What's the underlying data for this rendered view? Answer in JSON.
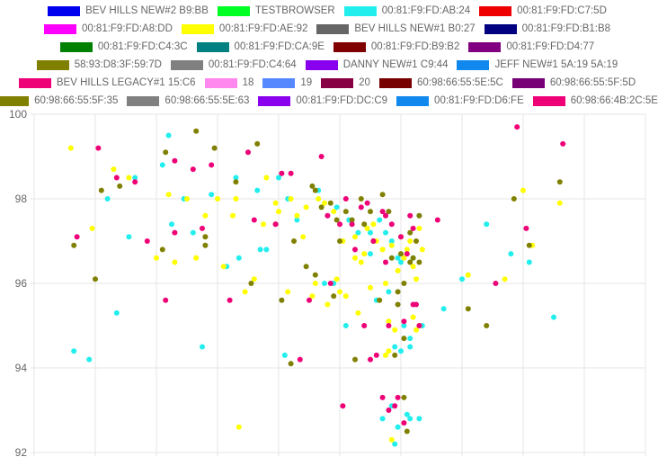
{
  "chart_data": {
    "type": "scatter",
    "title": "",
    "xlabel": "",
    "ylabel": "",
    "ylim": [
      92,
      100
    ],
    "yticks": [
      92,
      94,
      96,
      98,
      100
    ],
    "x_tick_labels_visible": false,
    "grid": true,
    "legend_position": "top",
    "legend_rows": [
      [
        0,
        1,
        2,
        3
      ],
      [
        4,
        5,
        6,
        7
      ],
      [
        8,
        9,
        10,
        11
      ],
      [
        12,
        13,
        14,
        15
      ],
      [
        16,
        17,
        18,
        19,
        20,
        21
      ],
      [
        22,
        23,
        24,
        25,
        26
      ]
    ],
    "series": [
      {
        "name": "BEV HILLS NEW#2 B9:BB",
        "color": "#0000ee",
        "points": []
      },
      {
        "name": "TESTBROWSER",
        "color": "#00ff22",
        "points": []
      },
      {
        "name": "00:81:F9:FD:AB:24",
        "color": "#22eeee",
        "points": [
          [
            6.5,
            94.4
          ],
          [
            9.0,
            94.2
          ],
          [
            12.0,
            98.0
          ],
          [
            15.5,
            97.1
          ],
          [
            16.5,
            98.5
          ],
          [
            13.5,
            95.3
          ],
          [
            21.0,
            98.8
          ],
          [
            22.5,
            97.4
          ],
          [
            22.0,
            99.5
          ],
          [
            24.5,
            98.0
          ],
          [
            26.0,
            97.2
          ],
          [
            29.0,
            98.1
          ],
          [
            27.5,
            94.5
          ],
          [
            33.0,
            98.5
          ],
          [
            31.5,
            96.4
          ],
          [
            33.5,
            96.6
          ],
          [
            36.5,
            98.2
          ],
          [
            37.0,
            96.8
          ],
          [
            38.0,
            96.8
          ],
          [
            40.0,
            98.5
          ],
          [
            41.5,
            98.0
          ],
          [
            43.0,
            97.5
          ],
          [
            41.0,
            94.3
          ],
          [
            46.5,
            98.2
          ],
          [
            47.5,
            96.0
          ],
          [
            49.0,
            96.0
          ],
          [
            51.5,
            97.5
          ],
          [
            51.0,
            95.0
          ],
          [
            53.0,
            97.2
          ],
          [
            55.0,
            97.2
          ],
          [
            56.0,
            95.6
          ],
          [
            58.0,
            95.8
          ],
          [
            59.0,
            94.5
          ],
          [
            59.5,
            96.6
          ],
          [
            60.5,
            95.0
          ],
          [
            61.5,
            94.7
          ],
          [
            62.0,
            96.6
          ],
          [
            63.0,
            97.6
          ],
          [
            63.5,
            95.0
          ],
          [
            60.0,
            94.4
          ],
          [
            61.5,
            94.5
          ],
          [
            57.0,
            92.8
          ],
          [
            58.5,
            93.1
          ],
          [
            59.5,
            92.6
          ],
          [
            61.0,
            92.9
          ],
          [
            61.5,
            92.8
          ],
          [
            59.0,
            92.2
          ],
          [
            63.0,
            92.8
          ],
          [
            57.5,
            97.2
          ],
          [
            55.0,
            96.7
          ],
          [
            67.0,
            95.4
          ],
          [
            70.0,
            96.1
          ],
          [
            74.0,
            97.4
          ],
          [
            78.0,
            96.7
          ],
          [
            81.0,
            96.5
          ],
          [
            85.0,
            95.2
          ],
          [
            60.0,
            96.5
          ],
          [
            58.5,
            97.0
          ],
          [
            56.5,
            97.5
          ],
          [
            49.5,
            97.8
          ]
        ]
      },
      {
        "name": "00:81:F9:FD:C7:5D",
        "color": "#ee0000",
        "points": []
      },
      {
        "name": "00:81:F9:FD:A8:DD",
        "color": "#ff00ff",
        "points": []
      },
      {
        "name": "00:81:F9:FD:AE:92",
        "color": "#ffff00",
        "points": [
          [
            6.0,
            99.2
          ],
          [
            9.5,
            97.3
          ],
          [
            13.0,
            98.7
          ],
          [
            15.5,
            98.5
          ],
          [
            20.0,
            96.6
          ],
          [
            22.0,
            98.1
          ],
          [
            23.0,
            96.5
          ],
          [
            25.0,
            98.0
          ],
          [
            26.5,
            96.6
          ],
          [
            28.0,
            97.6
          ],
          [
            30.0,
            98.0
          ],
          [
            31.0,
            96.4
          ],
          [
            32.5,
            97.6
          ],
          [
            33.0,
            98.0
          ],
          [
            34.5,
            95.8
          ],
          [
            36.0,
            96.1
          ],
          [
            37.5,
            97.4
          ],
          [
            38.0,
            98.5
          ],
          [
            39.5,
            97.9
          ],
          [
            40.0,
            97.7
          ],
          [
            41.5,
            95.8
          ],
          [
            42.0,
            98.0
          ],
          [
            43.0,
            97.6
          ],
          [
            44.0,
            97.1
          ],
          [
            45.5,
            95.7
          ],
          [
            46.0,
            96.0
          ],
          [
            47.5,
            97.9
          ],
          [
            48.0,
            95.5
          ],
          [
            49.0,
            97.7
          ],
          [
            49.5,
            96.1
          ],
          [
            50.0,
            95.8
          ],
          [
            50.5,
            97.0
          ],
          [
            51.0,
            95.7
          ],
          [
            52.5,
            97.1
          ],
          [
            53.0,
            95.3
          ],
          [
            53.5,
            96.5
          ],
          [
            54.0,
            96.7
          ],
          [
            54.5,
            97.3
          ],
          [
            55.0,
            95.9
          ],
          [
            56.0,
            97.0
          ],
          [
            57.0,
            96.8
          ],
          [
            57.5,
            96.0
          ],
          [
            58.0,
            95.1
          ],
          [
            58.5,
            96.9
          ],
          [
            59.0,
            94.9
          ],
          [
            59.5,
            96.3
          ],
          [
            60.0,
            97.1
          ],
          [
            60.5,
            96.6
          ],
          [
            61.0,
            96.8
          ],
          [
            61.5,
            97.0
          ],
          [
            62.0,
            96.4
          ],
          [
            62.5,
            96.1
          ],
          [
            63.0,
            97.3
          ],
          [
            63.5,
            96.8
          ],
          [
            62.0,
            95.2
          ],
          [
            62.5,
            94.9
          ],
          [
            63.0,
            95.0
          ],
          [
            58.0,
            94.4
          ],
          [
            57.5,
            94.3
          ],
          [
            58.5,
            92.3
          ],
          [
            71.0,
            96.2
          ],
          [
            77.0,
            96.1
          ],
          [
            80.0,
            98.2
          ],
          [
            81.5,
            96.9
          ],
          [
            86.0,
            97.9
          ],
          [
            55.5,
            97.4
          ],
          [
            33.5,
            92.6
          ],
          [
            46.5,
            98.0
          ],
          [
            44.5,
            97.8
          ],
          [
            52.5,
            96.6
          ]
        ]
      },
      {
        "name": "BEV HILLS NEW#1 B0:27",
        "color": "#666666",
        "points": []
      },
      {
        "name": "00:81:F9:FD:B1:B8",
        "color": "#000080",
        "points": []
      },
      {
        "name": "00:81:F9:FD:C4:3C",
        "color": "#008000",
        "points": []
      },
      {
        "name": "00:81:F9:FD:CA:9E",
        "color": "#008080",
        "points": []
      },
      {
        "name": "00:81:F9:FD:B9:B2",
        "color": "#800000",
        "points": []
      },
      {
        "name": "00:81:F9:FD:D4:77",
        "color": "#800080",
        "points": []
      },
      {
        "name": "58:93:D8:3F:59:7D",
        "color": "#808000",
        "points": [
          [
            6.5,
            96.9
          ],
          [
            10.0,
            96.1
          ],
          [
            14.0,
            98.3
          ],
          [
            21.5,
            99.1
          ],
          [
            26.5,
            99.6
          ],
          [
            28.0,
            97.1
          ],
          [
            28.0,
            96.9
          ],
          [
            29.5,
            99.2
          ],
          [
            33.0,
            98.4
          ],
          [
            35.5,
            96.0
          ],
          [
            36.5,
            99.3
          ],
          [
            39.5,
            97.4
          ],
          [
            40.5,
            95.6
          ],
          [
            42.0,
            94.1
          ],
          [
            42.5,
            97.0
          ],
          [
            44.5,
            96.4
          ],
          [
            45.5,
            98.3
          ],
          [
            46.0,
            96.2
          ],
          [
            46.0,
            98.2
          ],
          [
            47.0,
            97.8
          ],
          [
            48.5,
            97.9
          ],
          [
            49.0,
            95.7
          ],
          [
            49.5,
            97.5
          ],
          [
            50.0,
            97.0
          ],
          [
            51.0,
            97.7
          ],
          [
            52.0,
            97.5
          ],
          [
            53.5,
            98.0
          ],
          [
            54.0,
            97.4
          ],
          [
            55.0,
            97.7
          ],
          [
            56.5,
            95.6
          ],
          [
            57.0,
            98.1
          ],
          [
            58.0,
            97.7
          ],
          [
            58.5,
            96.6
          ],
          [
            59.5,
            95.5
          ],
          [
            59.5,
            95.8
          ],
          [
            60.0,
            96.7
          ],
          [
            60.5,
            96.0
          ],
          [
            60.5,
            93.3
          ],
          [
            61.0,
            92.5
          ],
          [
            61.5,
            96.5
          ],
          [
            62.0,
            96.6
          ],
          [
            62.5,
            97.0
          ],
          [
            60.5,
            94.7
          ],
          [
            59.0,
            94.3
          ],
          [
            63.0,
            96.5
          ],
          [
            71.0,
            95.4
          ],
          [
            74.0,
            95.0
          ],
          [
            78.5,
            98.0
          ],
          [
            81.0,
            96.9
          ],
          [
            86.0,
            98.4
          ],
          [
            52.5,
            94.2
          ],
          [
            55.5,
            97.0
          ],
          [
            63.0,
            97.6
          ],
          [
            61.5,
            97.2
          ],
          [
            11.0,
            98.2
          ],
          [
            21.0,
            96.8
          ]
        ]
      },
      {
        "name": "00:81:F9:FD:C4:64",
        "color": "#808080",
        "points": []
      },
      {
        "name": "DANNY NEW#1 C9:44",
        "color": "#8800ee",
        "points": []
      },
      {
        "name": "JEFF NEW#1 5A:19 5A:19",
        "color": "#1188ee",
        "points": []
      },
      {
        "name": "BEV HILLS LEGACY#1 15:C6",
        "color": "#ee0077",
        "points": []
      },
      {
        "name": "18",
        "color": "#ff88ee",
        "points": []
      },
      {
        "name": "19",
        "color": "#5588ff",
        "points": []
      },
      {
        "name": "20",
        "color": "#880044",
        "points": []
      },
      {
        "name": "60:98:66:55:5E:5C",
        "color": "#770000",
        "points": []
      },
      {
        "name": "60:98:66:55:5F:5D",
        "color": "#770077",
        "points": []
      },
      {
        "name": "60:98:66:55:5F:35",
        "color": "#808000",
        "points": []
      },
      {
        "name": "60:98:66:55:5E:63",
        "color": "#808080",
        "points": []
      },
      {
        "name": "00:81:F9:FD:DC:C9",
        "color": "#8800ee",
        "points": []
      },
      {
        "name": "00:81:F9:FD:D6:FE",
        "color": "#1188ee",
        "points": []
      },
      {
        "name": "60:98:66:4B:2C:5E",
        "color": "#ee0077",
        "points": [
          [
            7.0,
            97.1
          ],
          [
            10.5,
            99.2
          ],
          [
            13.5,
            98.5
          ],
          [
            16.5,
            98.4
          ],
          [
            18.5,
            97.0
          ],
          [
            21.5,
            95.6
          ],
          [
            23.0,
            98.9
          ],
          [
            23.0,
            97.2
          ],
          [
            26.0,
            98.7
          ],
          [
            27.5,
            97.3
          ],
          [
            29.0,
            98.8
          ],
          [
            32.0,
            95.6
          ],
          [
            35.0,
            99.1
          ],
          [
            36.0,
            97.5
          ],
          [
            39.5,
            97.4
          ],
          [
            40.5,
            98.6
          ],
          [
            42.0,
            98.6
          ],
          [
            43.5,
            94.2
          ],
          [
            45.0,
            95.6
          ],
          [
            47.0,
            99.0
          ],
          [
            48.0,
            97.6
          ],
          [
            48.5,
            96.0
          ],
          [
            50.0,
            97.4
          ],
          [
            51.0,
            98.0
          ],
          [
            52.0,
            97.4
          ],
          [
            52.5,
            96.8
          ],
          [
            53.5,
            97.8
          ],
          [
            54.0,
            95.0
          ],
          [
            54.5,
            97.9
          ],
          [
            55.0,
            94.2
          ],
          [
            55.5,
            97.0
          ],
          [
            56.0,
            94.3
          ],
          [
            57.0,
            97.7
          ],
          [
            57.5,
            96.5
          ],
          [
            58.0,
            95.0
          ],
          [
            58.5,
            97.4
          ],
          [
            59.0,
            93.1
          ],
          [
            59.5,
            93.3
          ],
          [
            60.0,
            97.1
          ],
          [
            60.5,
            95.1
          ],
          [
            61.0,
            96.7
          ],
          [
            61.5,
            97.6
          ],
          [
            62.0,
            95.5
          ],
          [
            62.5,
            95.5
          ],
          [
            63.0,
            95.0
          ],
          [
            60.5,
            92.7
          ],
          [
            57.0,
            93.3
          ],
          [
            58.0,
            93.0
          ],
          [
            66.0,
            97.5
          ],
          [
            75.5,
            96.0
          ],
          [
            79.0,
            99.7
          ],
          [
            80.5,
            97.3
          ],
          [
            86.5,
            99.3
          ],
          [
            50.5,
            93.1
          ],
          [
            57.5,
            97.6
          ],
          [
            62.0,
            97.3
          ]
        ]
      }
    ]
  }
}
